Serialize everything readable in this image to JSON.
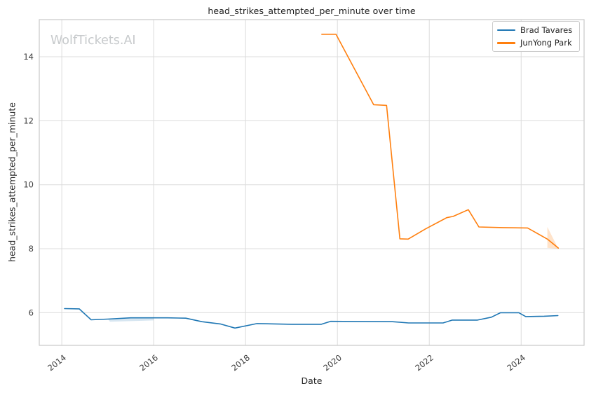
{
  "figure": {
    "title": "head_strikes_attempted_per_minute over time",
    "watermark": "WolfTickets.AI",
    "xlabel": "Date",
    "ylabel": "head_strikes_attempted_per_minute"
  },
  "legend": {
    "items": [
      {
        "label": "Brad Tavares",
        "color": "#1f77b4"
      },
      {
        "label": "JunYong Park",
        "color": "#ff7f0e"
      }
    ]
  },
  "colors": {
    "series_blue": "#1f77b4",
    "series_orange": "#ff7f0e",
    "grid": "#dcdcdc",
    "spine": "#c9c9c9",
    "tick_text": "#3d3d3d",
    "watermark": "#c7cacc",
    "background": "#ffffff"
  },
  "chart_data": {
    "type": "line",
    "title": "head_strikes_attempted_per_minute over time",
    "xlabel": "Date",
    "ylabel": "head_strikes_attempted_per_minute",
    "xlim": [
      2013.51,
      2025.37
    ],
    "ylim": [
      4.98,
      15.16
    ],
    "x_ticks": [
      2014,
      2016,
      2018,
      2020,
      2022,
      2024
    ],
    "y_ticks": [
      6,
      8,
      10,
      12,
      14
    ],
    "grid": true,
    "legend_position": "upper right",
    "series": [
      {
        "name": "Brad Tavares",
        "id": "brad-tavares",
        "color": "#1f77b4",
        "x": [
          2014.06,
          2014.38,
          2014.64,
          2015.0,
          2015.5,
          2016.3,
          2016.7,
          2017.05,
          2017.45,
          2017.77,
          2018.25,
          2019.0,
          2019.65,
          2019.85,
          2021.2,
          2021.55,
          2022.3,
          2022.5,
          2023.05,
          2023.35,
          2023.55,
          2023.95,
          2024.1,
          2024.5,
          2024.8
        ],
        "y": [
          6.13,
          6.12,
          5.78,
          5.8,
          5.84,
          5.84,
          5.83,
          5.72,
          5.65,
          5.52,
          5.66,
          5.64,
          5.64,
          5.73,
          5.72,
          5.68,
          5.68,
          5.77,
          5.77,
          5.86,
          6.0,
          6.0,
          5.88,
          5.89,
          5.91
        ]
      },
      {
        "name": "JunYong Park",
        "id": "junyong-park",
        "color": "#ff7f0e",
        "x": [
          2019.66,
          2019.97,
          2020.79,
          2021.07,
          2021.36,
          2021.54,
          2021.92,
          2022.38,
          2022.52,
          2022.85,
          2023.08,
          2023.6,
          2024.14,
          2024.57,
          2024.81
        ],
        "y": [
          14.7,
          14.7,
          12.5,
          12.48,
          8.31,
          8.3,
          8.62,
          8.97,
          9.01,
          9.22,
          8.68,
          8.66,
          8.65,
          8.3,
          8.02
        ]
      }
    ],
    "bands": [
      {
        "series": "Brad Tavares",
        "color": "#1f77b4",
        "opacity": 0.18,
        "points": [
          [
            2015.0,
            5.81
          ],
          [
            2016.0,
            5.84
          ],
          [
            2016.0,
            5.76
          ],
          [
            2015.05,
            5.72
          ]
        ]
      },
      {
        "series": "JunYong Park",
        "color": "#ff7f0e",
        "opacity": 0.22,
        "points": [
          [
            2024.57,
            8.68
          ],
          [
            2024.57,
            8.03
          ],
          [
            2024.81,
            8.0
          ]
        ]
      }
    ]
  }
}
